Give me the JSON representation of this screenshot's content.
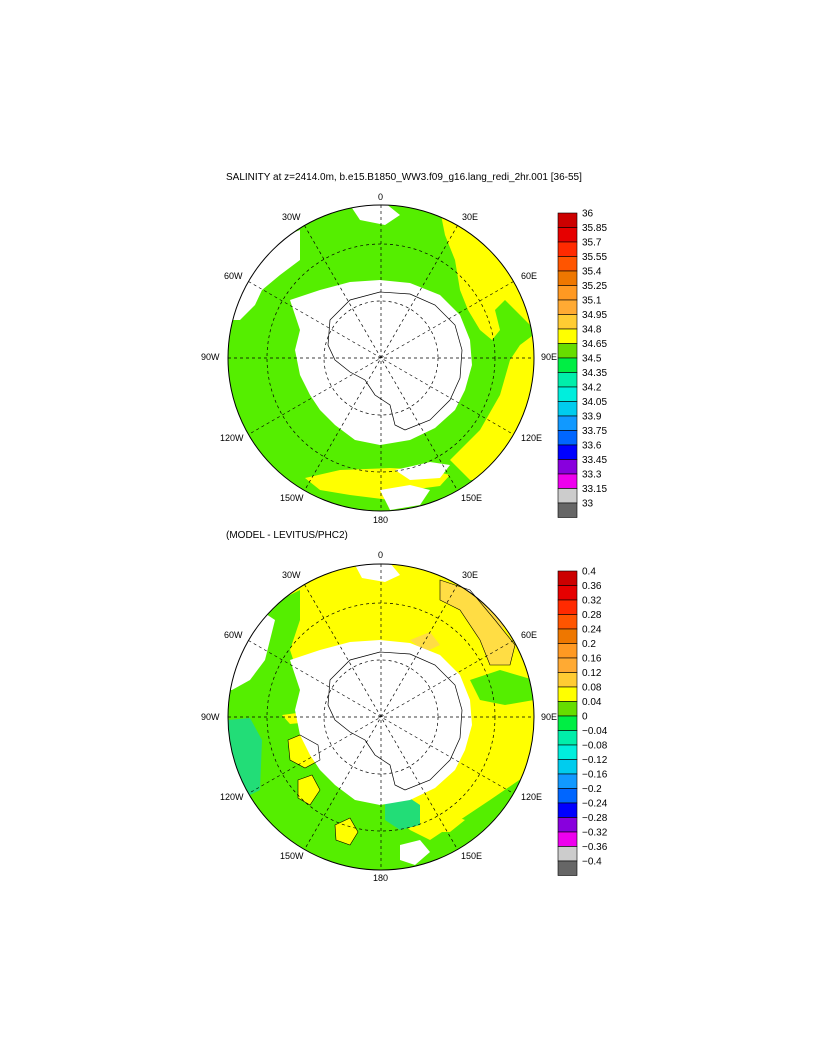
{
  "title": "SALINITY at z=2414.0m, b.e15.B1850_WW3.f09_g16.lang_redi_2hr.001 [36-55]",
  "subtitle": "(MODEL - LEVITUS/PHC2)",
  "longitude_labels": {
    "top": "0",
    "e30": "30E",
    "e60": "60E",
    "e90": "90E",
    "e120": "120E",
    "e150": "150E",
    "bottom": "180",
    "w150": "150W",
    "w120": "120W",
    "w90": "90W",
    "w60": "60W",
    "w30": "30W"
  },
  "colorbars": {
    "salinity": {
      "labels": [
        "36",
        "35.85",
        "35.7",
        "35.55",
        "35.4",
        "35.25",
        "35.1",
        "34.95",
        "34.8",
        "34.65",
        "34.5",
        "34.35",
        "34.2",
        "34.05",
        "33.9",
        "33.75",
        "33.6",
        "33.45",
        "33.3",
        "33.15",
        "33"
      ],
      "colors": [
        "#cc0000",
        "#e60000",
        "#ff2a00",
        "#ff5500",
        "#ee7700",
        "#ff9922",
        "#ffaa33",
        "#ffcc33",
        "#ffff00",
        "#66dd00",
        "#00ee44",
        "#00eeaa",
        "#00eedd",
        "#00ccee",
        "#1199ff",
        "#0066ff",
        "#0000ff",
        "#8800dd",
        "#ee00ee",
        "#cccccc"
      ],
      "extremes": [
        "#cc0000",
        "#666666"
      ]
    },
    "difference": {
      "labels": [
        "0.4",
        "0.36",
        "0.32",
        "0.28",
        "0.24",
        "0.2",
        "0.16",
        "0.12",
        "0.08",
        "0.04",
        "0",
        "−0.04",
        "−0.08",
        "−0.12",
        "−0.16",
        "−0.2",
        "−0.24",
        "−0.28",
        "−0.32",
        "−0.36",
        "−0.4"
      ],
      "colors": [
        "#cc0000",
        "#e60000",
        "#ff2a00",
        "#ff5500",
        "#ee7700",
        "#ff9922",
        "#ffaa33",
        "#ffcc33",
        "#ffff00",
        "#66dd00",
        "#00ee44",
        "#00eeaa",
        "#00eedd",
        "#00ccee",
        "#1199ff",
        "#0066ff",
        "#0000ff",
        "#8800dd",
        "#ee00ee",
        "#cccccc"
      ]
    }
  },
  "colors": {
    "green": "#55ee00",
    "yellow": "#ffff00",
    "light_orange": "#ffdd44",
    "teal": "#22dd77",
    "land": "#ffffff"
  }
}
